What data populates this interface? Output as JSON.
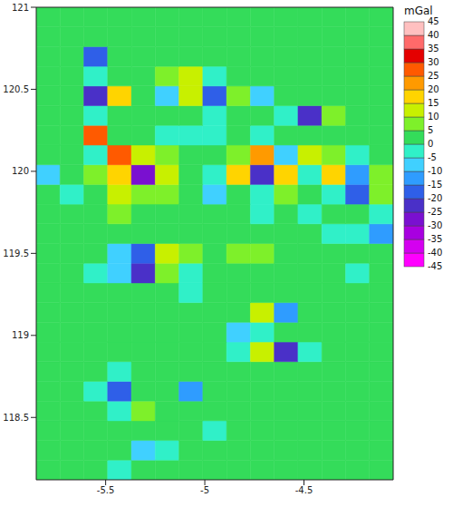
{
  "chart_data": {
    "type": "heatmap",
    "x_edges": [
      -5.85,
      -5.73,
      -5.61,
      -5.49,
      -5.37,
      -5.25,
      -5.13,
      -5.01,
      -4.89,
      -4.77,
      -4.65,
      -4.53,
      -4.41,
      -4.29,
      -4.17,
      -4.05
    ],
    "y_edges": [
      118.12,
      118.24,
      118.36,
      118.48,
      118.6,
      118.72,
      118.84,
      118.96,
      119.08,
      119.2,
      119.32,
      119.44,
      119.56,
      119.68,
      119.8,
      119.92,
      120.04,
      120.16,
      120.28,
      120.4,
      120.52,
      120.64,
      120.76,
      120.88,
      121
    ],
    "z": [
      [
        2,
        2,
        2,
        -2,
        2,
        2,
        2,
        2,
        2,
        2,
        2,
        2,
        2,
        2,
        2
      ],
      [
        2,
        2,
        2,
        2,
        -8,
        -3,
        2,
        2,
        2,
        2,
        2,
        2,
        2,
        2,
        2
      ],
      [
        2,
        2,
        2,
        2,
        3,
        2,
        2,
        -3,
        2,
        2,
        2,
        2,
        2,
        2,
        2
      ],
      [
        2,
        2,
        2,
        -3,
        7,
        2,
        2,
        2,
        2,
        2,
        2,
        2,
        2,
        2,
        2
      ],
      [
        2,
        2,
        -2,
        -20,
        3,
        2,
        -12,
        2,
        2,
        2,
        2,
        2,
        2,
        2,
        2
      ],
      [
        2,
        2,
        2,
        -3,
        2,
        2,
        2,
        2,
        3,
        2,
        2,
        2,
        2,
        2,
        2
      ],
      [
        2,
        2,
        2,
        2,
        2,
        2,
        2,
        2,
        -3,
        12,
        -25,
        -5,
        2,
        2,
        2
      ],
      [
        2,
        2,
        2,
        2,
        2,
        2,
        2,
        2,
        -10,
        -3,
        2,
        2,
        2,
        2,
        2
      ],
      [
        2,
        2,
        2,
        2,
        2,
        2,
        2,
        2,
        2,
        10,
        -15,
        2,
        2,
        2,
        2
      ],
      [
        2,
        2,
        2,
        2,
        2,
        2,
        -3,
        2,
        2,
        3,
        2,
        2,
        2,
        2,
        2
      ],
      [
        2,
        2,
        -3,
        -8,
        -25,
        8,
        -5,
        2,
        2,
        2,
        2,
        2,
        2,
        -3,
        2
      ],
      [
        2,
        2,
        2,
        -8,
        -20,
        10,
        8,
        2,
        7,
        6,
        2,
        2,
        2,
        2,
        2
      ],
      [
        2,
        2,
        2,
        2,
        2,
        2,
        2,
        2,
        2,
        2,
        2,
        2,
        -3,
        -5,
        -15
      ],
      [
        2,
        2,
        2,
        5,
        2,
        2,
        2,
        2,
        2,
        -3,
        2,
        -5,
        2,
        2,
        -5
      ],
      [
        2,
        -5,
        2,
        12,
        8,
        6,
        2,
        -8,
        2,
        -5,
        8,
        2,
        -3,
        -20,
        5
      ],
      [
        -10,
        2,
        5,
        15,
        -30,
        12,
        2,
        -5,
        15,
        -25,
        18,
        -3,
        18,
        -15,
        8
      ],
      [
        2,
        2,
        -3,
        28,
        10,
        8,
        2,
        2,
        6,
        20,
        -10,
        12,
        5,
        -5,
        2
      ],
      [
        2,
        2,
        25,
        3,
        2,
        -3,
        -5,
        -3,
        2,
        -5,
        2,
        2,
        2,
        2,
        2
      ],
      [
        2,
        2,
        -3,
        2,
        2,
        2,
        2,
        -5,
        2,
        2,
        -5,
        -25,
        8,
        2,
        2
      ],
      [
        2,
        2,
        -25,
        15,
        2,
        -8,
        10,
        -20,
        6,
        -10,
        3,
        2,
        2,
        2,
        2
      ],
      [
        2,
        2,
        -3,
        2,
        2,
        5,
        12,
        -5,
        2,
        2,
        2,
        2,
        2,
        2,
        2
      ],
      [
        2,
        2,
        -20,
        2,
        2,
        2,
        2,
        2,
        2,
        2,
        2,
        2,
        2,
        2,
        2
      ],
      [
        2,
        2,
        3,
        2,
        2,
        2,
        2,
        2,
        2,
        2,
        2,
        2,
        2,
        2,
        2
      ],
      [
        2,
        2,
        2,
        2,
        2,
        2,
        2,
        2,
        2,
        2,
        2,
        2,
        2,
        2,
        2
      ]
    ],
    "xlim": [
      -5.85,
      -4.05
    ],
    "ylim": [
      118.12,
      121
    ],
    "xticks": [
      -5.5,
      -5,
      -4.5
    ],
    "yticks": [
      118.5,
      119,
      119.5,
      120,
      120.5,
      121
    ],
    "colorbar": {
      "label": "mGal",
      "range": [
        -45,
        45
      ],
      "ticks": [
        -45,
        -40,
        -35,
        -30,
        -25,
        -20,
        -15,
        -10,
        -5,
        0,
        5,
        10,
        15,
        20,
        25,
        30,
        35,
        40,
        45
      ],
      "colors": [
        "#ff00ff",
        "#d400f0",
        "#a800e0",
        "#7a10d0",
        "#4a30c8",
        "#2f5fe8",
        "#2f9cff",
        "#40d0ff",
        "#30f0c8",
        "#34dc5a",
        "#7ef02a",
        "#c8f000",
        "#ffd400",
        "#ff9a00",
        "#ff5a00",
        "#e40000",
        "#ff6a6a",
        "#ffc0c0"
      ]
    }
  }
}
